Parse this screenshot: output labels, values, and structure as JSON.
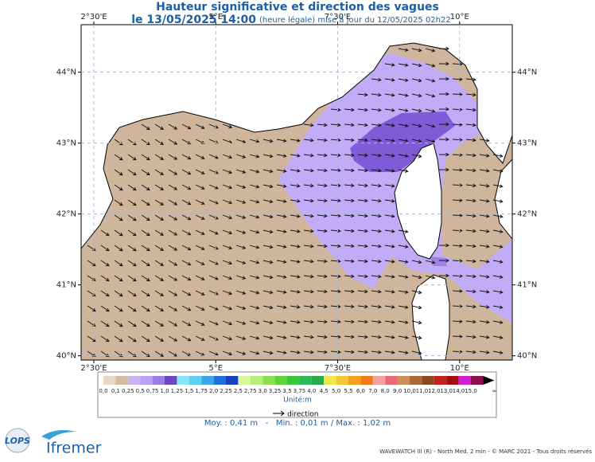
{
  "header": {
    "title": "Hauteur significative et direction des vagues",
    "date": "le 13/05/2025 14:00",
    "update": "(heure légale) mise à jour du 12/05/2025 02h22"
  },
  "map": {
    "xlim": [
      2.24,
      11.08
    ],
    "ylim": [
      39.94,
      44.67
    ],
    "xticks": [
      {
        "value": 2.5,
        "label": "2°30'E"
      },
      {
        "value": 5,
        "label": "5°E"
      },
      {
        "value": 7.5,
        "label": "7°30'E"
      },
      {
        "value": 10,
        "label": "10°E"
      }
    ],
    "yticks": [
      {
        "value": 40,
        "label": "40°N"
      },
      {
        "value": 41,
        "label": "41°N"
      },
      {
        "value": 42,
        "label": "42°N"
      },
      {
        "value": 43,
        "label": "43°N"
      },
      {
        "value": 44,
        "label": "44°N"
      }
    ],
    "grid": true
  },
  "colorbar": {
    "labels": [
      "0,0",
      "0,1",
      "0,25",
      "0,5",
      "0,75",
      "1,0",
      "1,25",
      "1,5",
      "1,75",
      "2,0",
      "2,25",
      "2,5",
      "2,75",
      "3,0",
      "3,25",
      "3,5",
      "3,75",
      "4,0",
      "4,5",
      "5,0",
      "5,5",
      "6,0",
      "7,0",
      "8,0",
      "9,0",
      "10,0",
      "11,0",
      "12,0",
      "13,0",
      "14,0",
      "15,0",
      "∞"
    ],
    "colors": [
      "#e8d6c4",
      "#d3bba0",
      "#c8b4ee",
      "#b9a2f6",
      "#9a7fe6",
      "#6d45c7",
      "#8ae6f5",
      "#5fcff0",
      "#3aa6ea",
      "#1f6fdc",
      "#1840c0",
      "#d8f5a0",
      "#b5ee78",
      "#8de050",
      "#5fd43a",
      "#3cc640",
      "#2eb85c",
      "#2aa84a",
      "#f0e84a",
      "#f5c830",
      "#f2a020",
      "#ef7c18",
      "#f4a0a0",
      "#e86878",
      "#c8905a",
      "#a86a38",
      "#8a4a20",
      "#c02020",
      "#a01010",
      "#d020d0",
      "#8a1050"
    ],
    "unit": "Unité:m",
    "direction": "direction"
  },
  "stats": "Moy. : 0,41 m   -   Min. : 0,01 m / Max. : 1,02 m",
  "logos": {
    "lops": "LOPS",
    "ifremer": "Ifremer"
  },
  "footer": "WAVEWATCH III (R) - North Med. 2 min - © MARC 2021 - Tous droits réservés"
}
